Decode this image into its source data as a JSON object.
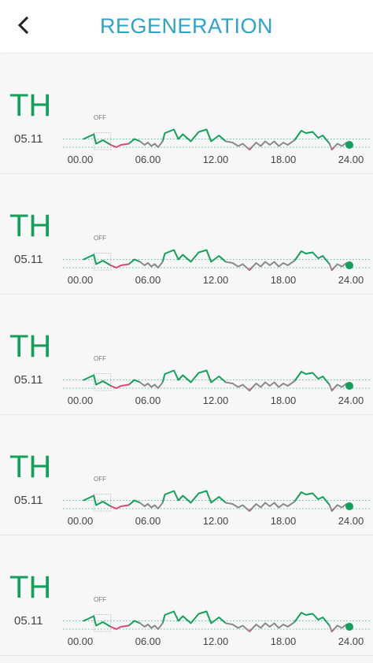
{
  "header": {
    "title": "REGENERATION",
    "back_icon": "chevron-left-icon"
  },
  "colors": {
    "title": "#2ea3c7",
    "good": "#12a05a",
    "neutral": "#8a8a8a",
    "bad": "#e0457b",
    "reference": "#5fb9a0"
  },
  "off_label": "OFF",
  "time_ticks": [
    "00.00",
    "06.00",
    "12.00",
    "18.00",
    "24.00"
  ],
  "days": [
    {
      "day": "TH",
      "date": "05.11"
    },
    {
      "day": "TH",
      "date": "05.11"
    },
    {
      "day": "TH",
      "date": "05.11"
    },
    {
      "day": "TH",
      "date": "05.11"
    },
    {
      "day": "TH",
      "date": "05.11"
    }
  ],
  "chart_data": {
    "type": "line",
    "x_unit": "hours",
    "xlim": [
      0,
      24
    ],
    "x_ticks": [
      "00.00",
      "06.00",
      "12.00",
      "18.00",
      "24.00"
    ],
    "off_period": [
      1.2,
      2.7
    ],
    "series": [
      {
        "values": [
          [
            0.3,
            0.55
          ],
          [
            1.2,
            0.75
          ],
          [
            1.4,
            0.35
          ],
          [
            2.0,
            0.5
          ],
          [
            2.7,
            0.3
          ]
        ]
      },
      {
        "values": [
          [
            4.3,
            0.35
          ],
          [
            4.8,
            0.55
          ],
          [
            5.3,
            0.45
          ]
        ]
      },
      {
        "values": [
          [
            7.3,
            0.45
          ],
          [
            7.5,
            0.8
          ],
          [
            8.3,
            0.95
          ],
          [
            8.7,
            0.55
          ],
          [
            9.1,
            0.75
          ],
          [
            9.8,
            0.45
          ],
          [
            10.5,
            0.85
          ],
          [
            11.2,
            0.95
          ],
          [
            11.6,
            0.45
          ],
          [
            12.3,
            0.7
          ],
          [
            12.9,
            0.45
          ]
        ]
      },
      {
        "values": [
          [
            19.0,
            0.5
          ],
          [
            19.6,
            0.9
          ],
          [
            20.0,
            0.8
          ],
          [
            20.6,
            0.85
          ],
          [
            21.1,
            0.6
          ],
          [
            21.5,
            0.7
          ],
          [
            22.1,
            0.35
          ]
        ]
      },
      {
        "values": [
          [
            2.7,
            0.3
          ],
          [
            3.2,
            0.2
          ],
          [
            3.6,
            0.3
          ],
          [
            4.3,
            0.35
          ]
        ]
      },
      {
        "values": [
          [
            15.0,
            0.1
          ],
          [
            15.2,
            0.2
          ]
        ]
      },
      {
        "values": [
          [
            22.3,
            0.1
          ],
          [
            22.5,
            0.2
          ]
        ]
      },
      {
        "values": [
          [
            5.3,
            0.45
          ],
          [
            5.7,
            0.3
          ],
          [
            6.0,
            0.4
          ],
          [
            6.3,
            0.25
          ],
          [
            6.6,
            0.35
          ],
          [
            6.9,
            0.2
          ],
          [
            7.3,
            0.45
          ]
        ]
      },
      {
        "values": [
          [
            12.9,
            0.45
          ],
          [
            13.5,
            0.4
          ],
          [
            14.0,
            0.25
          ],
          [
            14.4,
            0.35
          ],
          [
            15.0,
            0.1
          ]
        ]
      },
      {
        "values": [
          [
            15.2,
            0.2
          ],
          [
            15.6,
            0.4
          ],
          [
            16.0,
            0.25
          ],
          [
            16.4,
            0.45
          ],
          [
            16.8,
            0.3
          ],
          [
            17.2,
            0.45
          ],
          [
            17.6,
            0.25
          ],
          [
            18.0,
            0.4
          ],
          [
            18.4,
            0.3
          ],
          [
            19.0,
            0.5
          ]
        ]
      },
      {
        "values": [
          [
            22.1,
            0.35
          ],
          [
            22.3,
            0.1
          ]
        ]
      },
      {
        "values": [
          [
            22.5,
            0.2
          ],
          [
            22.8,
            0.35
          ],
          [
            23.2,
            0.25
          ],
          [
            23.6,
            0.4
          ],
          [
            24.0,
            0.3
          ]
        ]
      }
    ],
    "reference_lines": [
      0.55,
      0.2
    ],
    "current_point": [
      24.0,
      0.3
    ]
  }
}
